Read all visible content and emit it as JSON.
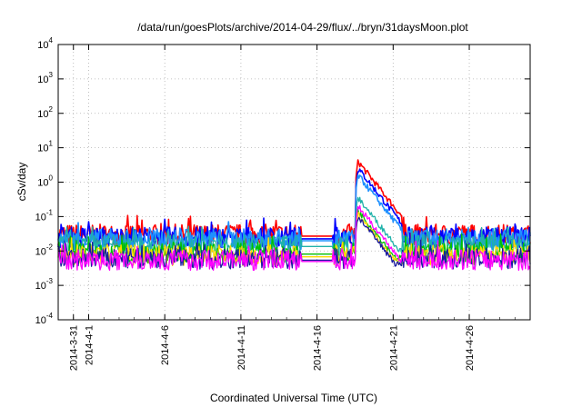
{
  "chart_data": {
    "type": "line",
    "title": "/data/run/goesPlots/archive/2014-04-29/flux/../bryn/31daysMoon.plot",
    "xlabel": "Coordinated Universal Time (UTC)",
    "ylabel": "cSv/day",
    "yscale": "log",
    "ylim": [
      0.0001,
      10000
    ],
    "xlim": [
      "2014-03-30",
      "2014-04-30"
    ],
    "grid": true,
    "legend": "none",
    "x_ticks": [
      "2014-3-31",
      "2014-4-1",
      "2014-4-6",
      "2014-4-11",
      "2014-4-16",
      "2014-4-21",
      "2014-4-26"
    ],
    "y_ticks": [
      {
        "base": "10",
        "exp": "-4",
        "value": 0.0001
      },
      {
        "base": "10",
        "exp": "-3",
        "value": 0.001
      },
      {
        "base": "10",
        "exp": "-2",
        "value": 0.01
      },
      {
        "base": "10",
        "exp": "-1",
        "value": 0.1
      },
      {
        "base": "10",
        "exp": "0",
        "value": 1
      },
      {
        "base": "10",
        "exp": "1",
        "value": 10
      },
      {
        "base": "10",
        "exp": "2",
        "value": 100
      },
      {
        "base": "10",
        "exp": "3",
        "value": 1000
      },
      {
        "base": "10",
        "exp": "4",
        "value": 10000
      }
    ],
    "series": [
      {
        "color": "#ff0000",
        "base": 0.03,
        "peak": 4.0,
        "decay_end": 0.03
      },
      {
        "color": "#0000ff",
        "base": 0.025,
        "peak": 2.5,
        "decay_end": 0.025
      },
      {
        "color": "#1e90ff",
        "base": 0.022,
        "peak": 1.6,
        "decay_end": 0.022
      },
      {
        "color": "#20b2aa",
        "base": 0.015,
        "peak": 0.35,
        "decay_end": 0.015
      },
      {
        "color": "#00c000",
        "base": 0.009,
        "peak": 0.15,
        "decay_end": 0.009
      },
      {
        "color": "#ffd700",
        "base": 0.0075,
        "peak": 0.12,
        "decay_end": 0.0075
      },
      {
        "color": "#1a1aa0",
        "base": 0.006,
        "peak": 0.1,
        "decay_end": 0.006
      },
      {
        "color": "#ff00ff",
        "base": 0.0055,
        "peak": 0.2,
        "decay_end": 0.0055
      }
    ],
    "gap_period": [
      "2014-04-15",
      "2014-04-17"
    ],
    "event_start": "2014-04-18T12:00",
    "event_decay_end": "2014-04-21"
  }
}
